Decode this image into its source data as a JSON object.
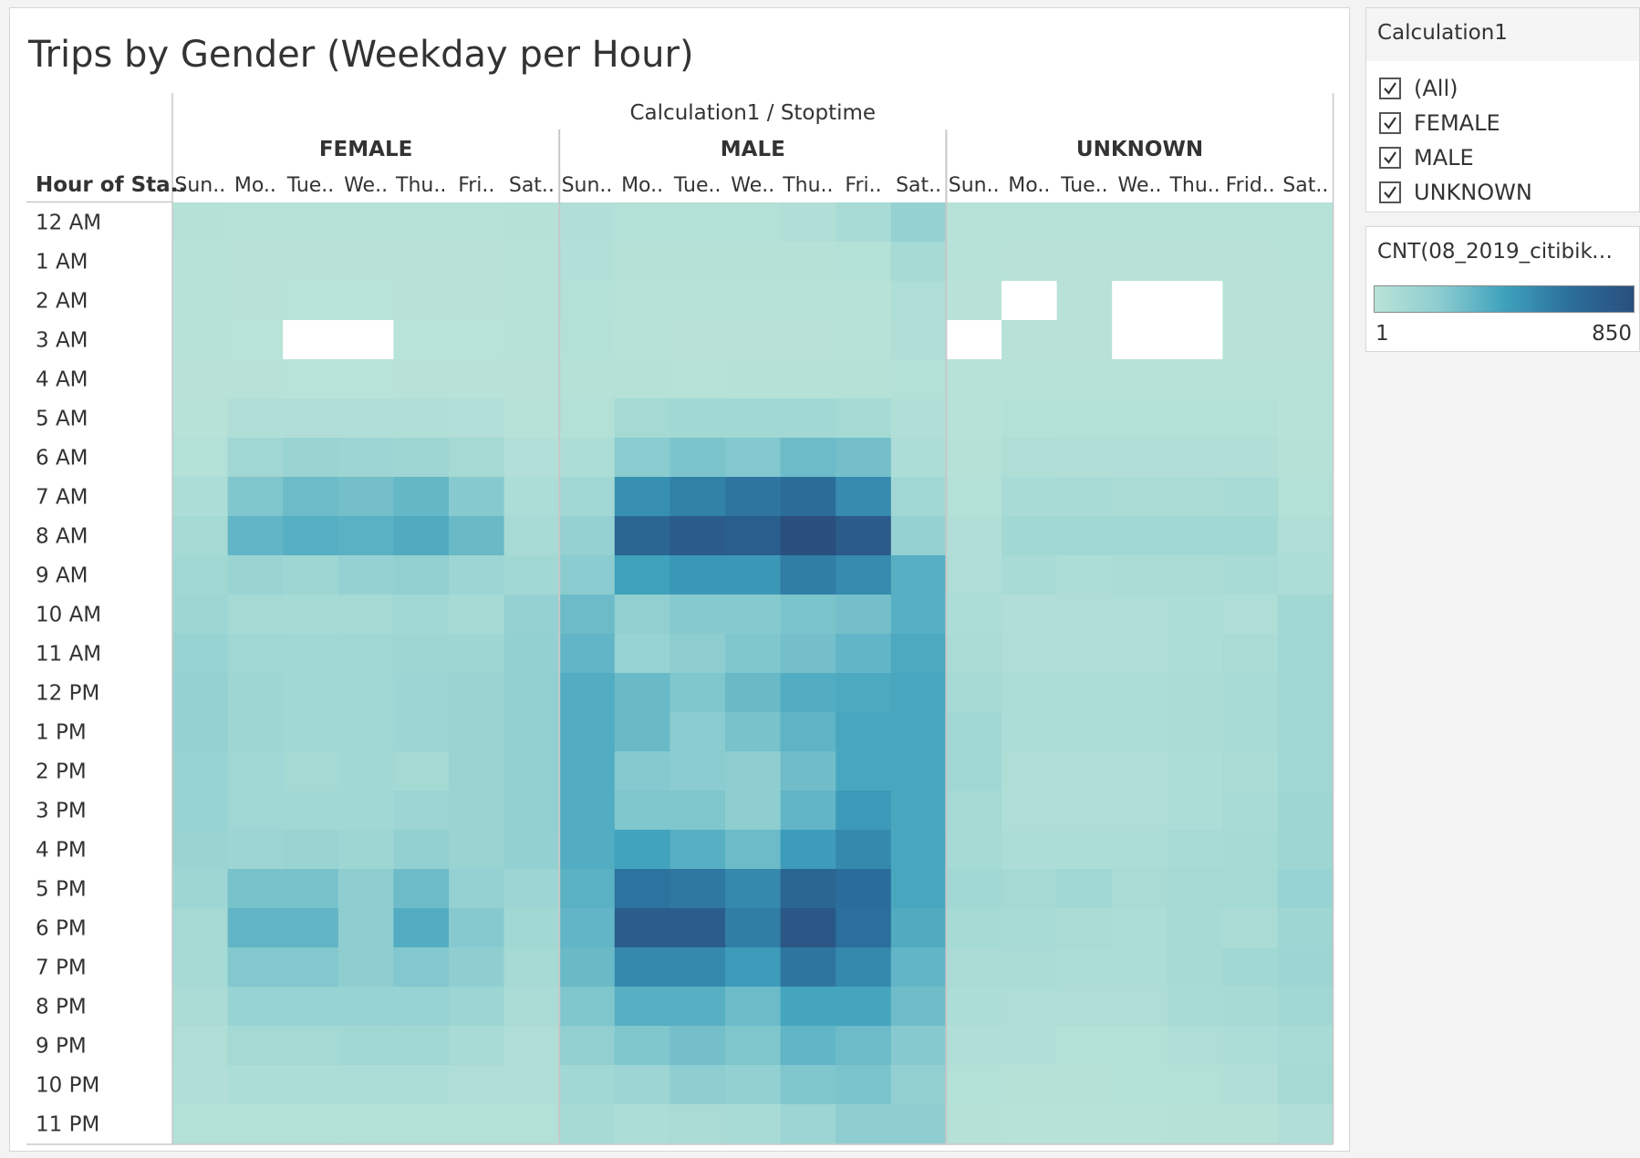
{
  "title": "Trips by Gender (Weekday per Hour)",
  "filter": {
    "title": "Calculation1",
    "items": [
      {
        "label": "(All)",
        "checked": true
      },
      {
        "label": "FEMALE",
        "checked": true
      },
      {
        "label": "MALE",
        "checked": true
      },
      {
        "label": "UNKNOWN",
        "checked": true
      }
    ]
  },
  "legend": {
    "title": "CNT(08_2019_citibike...",
    "min_label": "1",
    "max_label": "850",
    "colors": [
      "#b9e3d8",
      "#8ccdd0",
      "#3fa2bd",
      "#2b6f9c",
      "#2a4f7e"
    ]
  },
  "chart_data": {
    "type": "heatmap",
    "title": "Trips by Gender (Weekday per Hour)",
    "column_header": "Calculation1 / Stoptime",
    "row_header": "Hour of Sta..",
    "groups": [
      "FEMALE",
      "MALE",
      "UNKNOWN"
    ],
    "day_labels": [
      [
        "Sun..",
        "Mo..",
        "Tue..",
        "We..",
        "Thu..",
        "Fri..",
        "Sat.."
      ],
      [
        "Sun..",
        "Mo..",
        "Tue..",
        "We..",
        "Thu..",
        "Fri..",
        "Sat.."
      ],
      [
        "Sun..",
        "Mo..",
        "Tue..",
        "We..",
        "Thu..",
        "Frid..",
        "Sat.."
      ]
    ],
    "hours": [
      "12 AM",
      "1 AM",
      "2 AM",
      "3 AM",
      "4 AM",
      "5 AM",
      "6 AM",
      "7 AM",
      "8 AM",
      "9 AM",
      "10 AM",
      "11 AM",
      "12 PM",
      "1 PM",
      "2 PM",
      "3 PM",
      "4 PM",
      "5 PM",
      "6 PM",
      "7 PM",
      "8 PM",
      "9 PM",
      "10 PM",
      "11 PM"
    ],
    "color_range": [
      1,
      850
    ],
    "values": {
      "FEMALE": [
        [
          20,
          10,
          10,
          10,
          10,
          10,
          20
        ],
        [
          15,
          8,
          8,
          8,
          8,
          8,
          15
        ],
        [
          12,
          6,
          5,
          5,
          6,
          6,
          12
        ],
        [
          10,
          4,
          null,
          null,
          4,
          5,
          10
        ],
        [
          8,
          6,
          5,
          5,
          6,
          6,
          8
        ],
        [
          15,
          40,
          45,
          45,
          40,
          35,
          15
        ],
        [
          30,
          120,
          150,
          140,
          130,
          100,
          35
        ],
        [
          60,
          250,
          300,
          280,
          320,
          230,
          60
        ],
        [
          90,
          330,
          360,
          350,
          380,
          310,
          80
        ],
        [
          110,
          150,
          130,
          170,
          190,
          140,
          110
        ],
        [
          130,
          100,
          90,
          100,
          110,
          90,
          170
        ],
        [
          160,
          120,
          110,
          120,
          130,
          130,
          180
        ],
        [
          170,
          130,
          110,
          120,
          140,
          150,
          190
        ],
        [
          170,
          130,
          110,
          120,
          140,
          150,
          190
        ],
        [
          160,
          120,
          100,
          110,
          100,
          150,
          190
        ],
        [
          160,
          120,
          110,
          110,
          140,
          150,
          190
        ],
        [
          150,
          140,
          150,
          130,
          180,
          150,
          180
        ],
        [
          130,
          270,
          270,
          200,
          300,
          170,
          140
        ],
        [
          100,
          330,
          330,
          200,
          370,
          230,
          110
        ],
        [
          90,
          240,
          240,
          200,
          240,
          200,
          90
        ],
        [
          70,
          160,
          160,
          160,
          160,
          140,
          70
        ],
        [
          50,
          100,
          100,
          110,
          110,
          80,
          50
        ],
        [
          40,
          60,
          60,
          60,
          60,
          50,
          40
        ],
        [
          30,
          30,
          30,
          30,
          30,
          30,
          30
        ]
      ],
      "MALE": [
        [
          40,
          30,
          30,
          30,
          40,
          80,
          170
        ],
        [
          35,
          20,
          20,
          20,
          20,
          30,
          90
        ],
        [
          30,
          15,
          12,
          12,
          12,
          15,
          50
        ],
        [
          25,
          10,
          8,
          8,
          8,
          10,
          40
        ],
        [
          20,
          20,
          15,
          18,
          20,
          18,
          30
        ],
        [
          30,
          100,
          110,
          110,
          110,
          90,
          40
        ],
        [
          60,
          220,
          260,
          240,
          300,
          280,
          60
        ],
        [
          110,
          500,
          560,
          610,
          660,
          520,
          110
        ],
        [
          170,
          700,
          770,
          750,
          850,
          770,
          170
        ],
        [
          220,
          430,
          470,
          470,
          580,
          520,
          360
        ],
        [
          300,
          190,
          230,
          230,
          260,
          280,
          360
        ],
        [
          330,
          160,
          210,
          250,
          280,
          330,
          390
        ],
        [
          370,
          310,
          250,
          310,
          370,
          390,
          400
        ],
        [
          370,
          310,
          220,
          270,
          340,
          400,
          400
        ],
        [
          370,
          230,
          220,
          200,
          290,
          400,
          400
        ],
        [
          370,
          250,
          250,
          200,
          330,
          460,
          400
        ],
        [
          370,
          420,
          360,
          300,
          450,
          530,
          400
        ],
        [
          350,
          620,
          600,
          530,
          700,
          650,
          400
        ],
        [
          330,
          760,
          760,
          580,
          800,
          640,
          380
        ],
        [
          310,
          530,
          530,
          450,
          610,
          530,
          330
        ],
        [
          250,
          360,
          360,
          300,
          410,
          410,
          290
        ],
        [
          190,
          250,
          280,
          250,
          330,
          300,
          230
        ],
        [
          110,
          140,
          200,
          180,
          250,
          260,
          190
        ],
        [
          90,
          60,
          70,
          80,
          140,
          200,
          200
        ]
      ],
      "UNKNOWN": [
        [
          12,
          12,
          10,
          10,
          10,
          10,
          12
        ],
        [
          10,
          8,
          6,
          6,
          6,
          8,
          10
        ],
        [
          8,
          null,
          6,
          null,
          null,
          6,
          8
        ],
        [
          null,
          6,
          6,
          null,
          null,
          6,
          8
        ],
        [
          10,
          10,
          10,
          10,
          10,
          10,
          10
        ],
        [
          15,
          25,
          25,
          25,
          25,
          25,
          15
        ],
        [
          20,
          50,
          40,
          40,
          40,
          40,
          20
        ],
        [
          30,
          80,
          80,
          70,
          70,
          80,
          30
        ],
        [
          40,
          110,
          110,
          110,
          110,
          110,
          50
        ],
        [
          50,
          80,
          60,
          70,
          70,
          80,
          60
        ],
        [
          60,
          40,
          50,
          50,
          60,
          50,
          110
        ],
        [
          70,
          50,
          50,
          50,
          60,
          70,
          120
        ],
        [
          90,
          60,
          60,
          60,
          70,
          80,
          120
        ],
        [
          110,
          60,
          60,
          60,
          70,
          80,
          120
        ],
        [
          120,
          50,
          50,
          50,
          60,
          70,
          120
        ],
        [
          100,
          50,
          50,
          50,
          60,
          80,
          130
        ],
        [
          90,
          60,
          60,
          60,
          80,
          90,
          130
        ],
        [
          110,
          100,
          110,
          70,
          100,
          100,
          160
        ],
        [
          90,
          80,
          70,
          60,
          90,
          70,
          130
        ],
        [
          70,
          70,
          60,
          60,
          90,
          110,
          140
        ],
        [
          60,
          50,
          50,
          50,
          80,
          90,
          110
        ],
        [
          40,
          40,
          30,
          30,
          50,
          60,
          80
        ],
        [
          30,
          20,
          20,
          30,
          30,
          40,
          100
        ],
        [
          20,
          10,
          10,
          10,
          20,
          20,
          40
        ]
      ]
    }
  }
}
